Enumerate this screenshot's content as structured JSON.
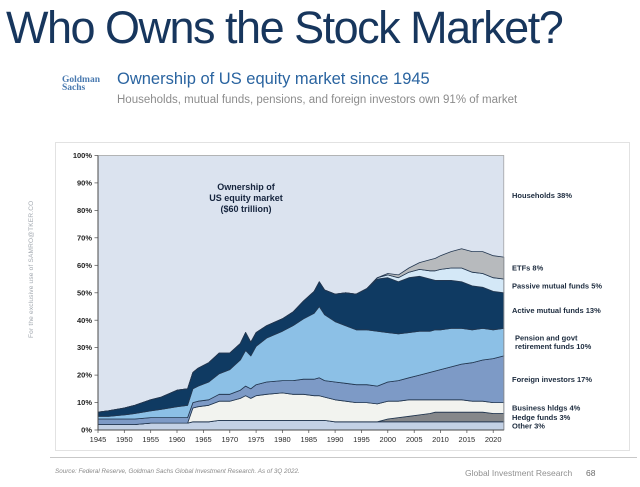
{
  "page": {
    "title": "Who Owns the Stock Market?",
    "watermark": "For the exclusive use of SAMRO@TKER.CO",
    "footer": {
      "source": "Source: Federal Reserve, Goldman Sachs Global Investment Research. As of 3Q 2022.",
      "division": "Global Investment Research",
      "page_number": "68"
    }
  },
  "header": {
    "logo_line1": "Goldman",
    "logo_line2": "Sachs",
    "heading": "Ownership of US equity market since 1945",
    "subheading": "Households, mutual funds, pensions, and foreign investors own 91% of market"
  },
  "chart_data": {
    "type": "area",
    "stacked": true,
    "annotation_lines": [
      "Ownership of",
      "US equity market",
      "($60 trillion)"
    ],
    "ylim": [
      0,
      100
    ],
    "y_ticks": [
      0,
      10,
      20,
      30,
      40,
      50,
      60,
      70,
      80,
      90,
      100
    ],
    "x_ticks": [
      1945,
      1950,
      1955,
      1960,
      1965,
      1970,
      1975,
      1980,
      1985,
      1990,
      1995,
      2000,
      2005,
      2010,
      2015,
      2020
    ],
    "x": [
      1945,
      1947,
      1950,
      1952,
      1955,
      1957,
      1960,
      1962,
      1963,
      1964,
      1966,
      1968,
      1970,
      1972,
      1973,
      1974,
      1975,
      1977,
      1980,
      1982,
      1984,
      1986,
      1987,
      1988,
      1990,
      1992,
      1994,
      1996,
      1998,
      2000,
      2002,
      2004,
      2006,
      2008,
      2009,
      2010,
      2012,
      2014,
      2016,
      2018,
      2020,
      2022
    ],
    "stroke": "#233750",
    "axis_color": "#4a4a4a",
    "border_color": "#9a9a9a",
    "label_color": "#1b2a3d",
    "annotation_color": "#15243d",
    "households": {
      "name": "households",
      "label_lines": [
        "Households 38%"
      ],
      "color": "#dbe3ef",
      "value_now": 38
    },
    "series": [
      {
        "name": "other",
        "label_lines": [
          "Other 3%"
        ],
        "color": "#c3d1e5",
        "values": [
          2,
          2,
          2,
          2,
          2.5,
          2.5,
          2.5,
          2.5,
          3,
          3,
          3,
          3.5,
          3.5,
          3.5,
          3.5,
          3.5,
          3.5,
          3.5,
          3.5,
          3.5,
          3.5,
          3.5,
          3.5,
          3.5,
          3,
          3,
          3,
          3,
          3,
          3,
          3,
          3,
          3,
          3,
          3,
          3,
          3,
          3,
          3,
          3,
          3,
          3
        ]
      },
      {
        "name": "hedge-funds",
        "label_lines": [
          "Hedge funds 3%"
        ],
        "color": "#85878a",
        "values": [
          0,
          0,
          0,
          0,
          0,
          0,
          0,
          0,
          0,
          0,
          0,
          0,
          0,
          0,
          0,
          0,
          0,
          0,
          0,
          0,
          0,
          0,
          0,
          0,
          0,
          0,
          0,
          0,
          0,
          1,
          1.5,
          2,
          2.5,
          3,
          3.5,
          3.5,
          3.5,
          3.5,
          3.5,
          3.5,
          3,
          3
        ]
      },
      {
        "name": "business-holdings",
        "label_lines": [
          "Business hldgs 4%"
        ],
        "color": "#f2f3ef",
        "values": [
          0,
          0,
          0,
          0,
          0,
          0,
          0,
          0,
          5,
          5.5,
          6,
          7,
          7,
          8,
          9,
          8,
          9,
          9.5,
          10,
          9.5,
          9.5,
          9,
          9,
          8.5,
          8,
          7.5,
          7,
          7,
          6.5,
          6.5,
          6,
          6,
          5.5,
          5,
          4.5,
          4.5,
          4.5,
          4.5,
          4,
          4,
          4,
          4
        ]
      },
      {
        "name": "foreign-investors",
        "label_lines": [
          "Foreign investors 17%"
        ],
        "color": "#7d9ac6",
        "values": [
          2,
          2,
          2,
          2,
          2,
          2,
          2,
          2,
          2,
          2,
          2,
          2.5,
          2.5,
          3,
          3.5,
          3.5,
          4,
          4.5,
          4.5,
          5,
          5.5,
          6,
          6.5,
          6,
          6.5,
          6.5,
          6.5,
          6.5,
          6.5,
          7,
          7.5,
          8,
          9,
          10,
          10.5,
          11,
          12,
          13,
          14,
          15,
          16,
          17
        ]
      },
      {
        "name": "pension-funds",
        "label_lines": [
          "Pension and govt",
          "retirement funds 10%"
        ],
        "color": "#8cc0e6",
        "values": [
          1,
          1,
          1.5,
          2,
          2.5,
          3,
          4,
          4.5,
          5,
          5.5,
          6.5,
          7.5,
          9,
          11,
          13,
          12,
          14,
          16,
          18,
          20,
          22,
          24,
          26,
          24,
          22,
          21,
          20,
          20,
          20,
          18,
          17,
          16.5,
          16,
          15,
          15,
          14.5,
          14,
          13,
          12,
          11.5,
          10.5,
          10
        ]
      },
      {
        "name": "active-mutual-funds",
        "label_lines": [
          "Active mutual funds 13%"
        ],
        "color": "#0f3a62",
        "values": [
          1.5,
          2,
          2.5,
          3,
          4,
          4.5,
          6,
          6,
          6,
          6.5,
          7,
          7.5,
          6,
          6,
          6.5,
          5,
          5,
          4.5,
          4.5,
          5,
          6.5,
          8,
          9,
          9,
          10,
          12,
          13,
          15,
          19,
          20,
          19,
          20,
          20,
          19,
          18,
          18,
          17.5,
          17,
          16,
          15,
          14,
          13
        ]
      },
      {
        "name": "passive-mutual-funds",
        "label_lines": [
          "Passive mutual funds 5%"
        ],
        "color": "#d4e8f7",
        "values": [
          0,
          0,
          0,
          0,
          0,
          0,
          0,
          0,
          0,
          0,
          0,
          0,
          0,
          0,
          0,
          0,
          0,
          0,
          0,
          0,
          0,
          0,
          0,
          0,
          0,
          0,
          0,
          0,
          0.5,
          1,
          1.5,
          2,
          2.5,
          3,
          3.5,
          4,
          4.5,
          5,
          5,
          5,
          5,
          5
        ]
      },
      {
        "name": "etfs",
        "label_lines": [
          "ETFs 8%"
        ],
        "color": "#b7babd",
        "values": [
          0,
          0,
          0,
          0,
          0,
          0,
          0,
          0,
          0,
          0,
          0,
          0,
          0,
          0,
          0,
          0,
          0,
          0,
          0,
          0,
          0,
          0,
          0,
          0,
          0,
          0,
          0,
          0,
          0,
          0.5,
          1,
          1.5,
          2.5,
          4,
          4.5,
          5,
          6,
          7,
          7.5,
          8,
          8,
          8
        ]
      }
    ]
  }
}
